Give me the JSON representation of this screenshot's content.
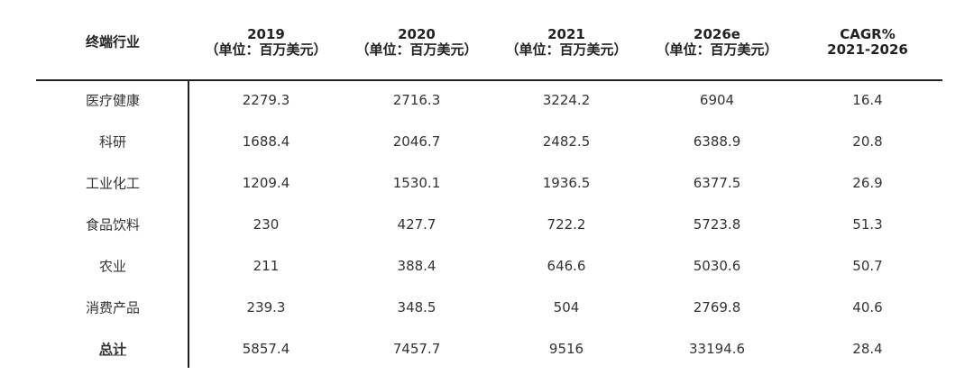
{
  "table": {
    "header": [
      [
        "终端行业"
      ],
      [
        "2019",
        "（单位：百万美元）"
      ],
      [
        "2020",
        "（单位：百万美元）"
      ],
      [
        "2021",
        "（单位：百万美元）"
      ],
      [
        "2026e",
        "（单位：百万美元）"
      ],
      [
        "CAGR%",
        "2021-2026"
      ]
    ],
    "rows": [
      [
        "医疗健康",
        2279.3,
        2716.3,
        3224.2,
        6904,
        16.4
      ],
      [
        "科研",
        1688.4,
        2046.7,
        2482.5,
        6388.9,
        20.8
      ],
      [
        "工业化工",
        1209.4,
        1530.1,
        1936.5,
        6377.5,
        26.9
      ],
      [
        "食品饮料",
        230,
        427.7,
        722.2,
        5723.8,
        51.3
      ],
      [
        "农业",
        211,
        388.4,
        646.6,
        5030.6,
        50.7
      ],
      [
        "消费产品",
        239.3,
        348.5,
        504,
        2769.8,
        40.6
      ],
      [
        "总计",
        5857.4,
        7457.7,
        9516,
        33194.6,
        28.4
      ]
    ]
  }
}
